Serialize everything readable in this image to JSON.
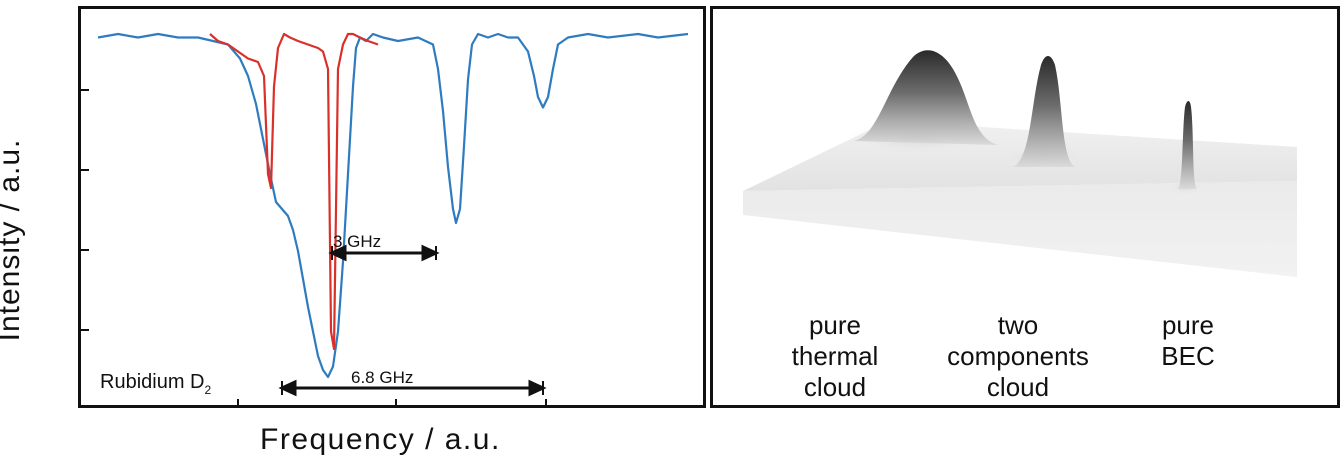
{
  "axes": {
    "ylabel": "Intensity / a.u.",
    "xlabel": "Frequency / a.u."
  },
  "left_panel": {
    "annotation_main": "Rubidium D",
    "annotation_sub": "2",
    "arrow_3ghz_label": "3 GHz",
    "arrow_68ghz_label": "6.8 GHz",
    "colors": {
      "blue": "#2e7cbf",
      "red": "#d9312a"
    }
  },
  "right_panel": {
    "captions": [
      {
        "lines": [
          "pure",
          "thermal",
          "cloud"
        ]
      },
      {
        "lines": [
          "two",
          "components",
          "cloud"
        ]
      },
      {
        "lines": [
          "pure",
          "BEC"
        ]
      }
    ]
  },
  "chart_data": {
    "type": "line",
    "title": "",
    "xlabel": "Frequency / a.u.",
    "ylabel": "Intensity / a.u.",
    "x_ticks_labeled": false,
    "y_ticks_labeled": false,
    "series": [
      {
        "color": "#2e7cbf",
        "x": [
          0,
          20,
          40,
          60,
          80,
          100,
          115,
          130,
          142,
          150,
          158,
          165,
          172,
          178,
          184,
          190,
          195,
          200,
          205,
          210,
          215,
          220,
          225,
          230,
          235,
          240,
          245,
          250,
          255,
          258,
          262,
          268,
          275,
          285,
          300,
          320,
          335,
          340,
          345,
          350,
          355,
          358,
          362,
          366,
          370,
          374,
          380,
          390,
          400,
          410,
          420,
          430,
          436,
          440,
          445,
          450,
          455,
          460,
          470,
          490,
          510,
          540,
          560,
          590
        ],
        "y": [
          0.99,
          1.0,
          0.99,
          1.0,
          0.99,
          0.99,
          0.98,
          0.97,
          0.93,
          0.88,
          0.8,
          0.7,
          0.6,
          0.52,
          0.5,
          0.48,
          0.44,
          0.38,
          0.3,
          0.22,
          0.15,
          0.08,
          0.04,
          0.02,
          0.05,
          0.15,
          0.35,
          0.6,
          0.85,
          0.96,
          0.99,
          0.98,
          1.0,
          0.99,
          0.98,
          0.99,
          0.97,
          0.9,
          0.78,
          0.62,
          0.5,
          0.46,
          0.5,
          0.68,
          0.87,
          0.97,
          1.0,
          0.99,
          1.0,
          0.99,
          0.99,
          0.95,
          0.88,
          0.82,
          0.79,
          0.82,
          0.9,
          0.97,
          0.99,
          1.0,
          0.99,
          1.0,
          0.99,
          1.0
        ]
      },
      {
        "color": "#d9312a",
        "x": [
          112,
          120,
          130,
          140,
          150,
          160,
          166,
          170,
          173,
          176,
          180,
          186,
          192,
          200,
          210,
          220,
          225,
          230,
          233,
          236,
          240,
          245,
          250,
          255,
          262,
          270,
          280
        ],
        "y": [
          1.0,
          0.98,
          0.97,
          0.95,
          0.93,
          0.92,
          0.88,
          0.6,
          0.56,
          0.85,
          0.96,
          1.0,
          0.99,
          0.98,
          0.97,
          0.96,
          0.95,
          0.9,
          0.15,
          0.1,
          0.9,
          0.97,
          1.0,
          1.0,
          0.99,
          0.98,
          0.97
        ]
      }
    ],
    "annotations": [
      {
        "text": "3 GHz",
        "from_x": 234,
        "to_x": 338
      },
      {
        "text": "6.8 GHz",
        "from_x": 184,
        "to_x": 445
      },
      {
        "text": "Rubidium D2"
      }
    ]
  }
}
